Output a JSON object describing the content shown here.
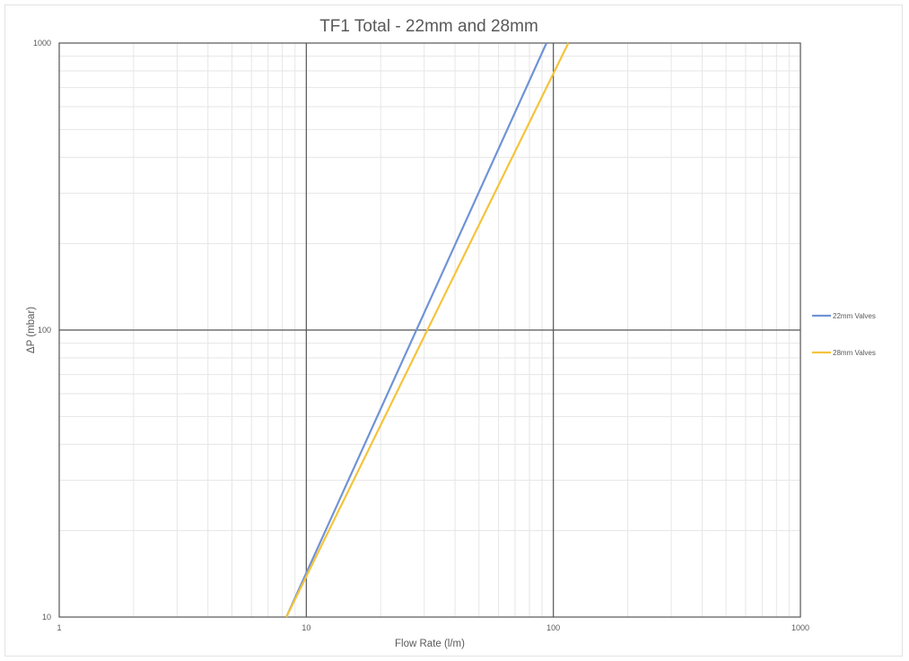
{
  "chart_data": {
    "type": "line",
    "title": "TF1 Total - 22mm and 28mm",
    "xlabel": "Flow Rate (l/m)",
    "ylabel": "ΔP (mbar)",
    "x_scale": "log",
    "y_scale": "log",
    "xlim": [
      1,
      1000
    ],
    "ylim": [
      10,
      1000
    ],
    "x_ticks": [
      "1",
      "10",
      "100",
      "1000"
    ],
    "y_ticks": [
      "10",
      "100",
      "1000"
    ],
    "grid": true,
    "legend_position": "right",
    "series": [
      {
        "name": "22mm Valves",
        "color": "#6f93d6",
        "x": [
          8.3,
          93.8
        ],
        "y": [
          10,
          1000
        ]
      },
      {
        "name": "28mm Valves",
        "color": "#f5c33b",
        "x": [
          8.3,
          115
        ],
        "y": [
          10,
          1000
        ]
      }
    ]
  }
}
